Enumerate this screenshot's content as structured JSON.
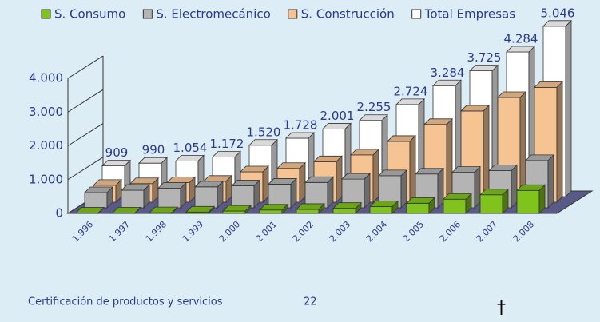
{
  "chart_data": {
    "type": "bar3d",
    "categories": [
      "1.996",
      "1.997",
      "1.998",
      "1.999",
      "2.000",
      "2.001",
      "2.002",
      "2.003",
      "2.004",
      "2.005",
      "2.006",
      "2.007",
      "2.008"
    ],
    "series": [
      {
        "name": "S. Consumo",
        "color": "#7fc31c",
        "values": [
          10,
          15,
          20,
          40,
          70,
          100,
          120,
          150,
          200,
          300,
          420,
          550,
          680
        ]
      },
      {
        "name": "S. Electromecánico",
        "color": "#b4b4b4",
        "values": [
          450,
          520,
          580,
          620,
          650,
          700,
          750,
          850,
          950,
          1000,
          1050,
          1100,
          1400
        ]
      },
      {
        "name": "S. Construcción",
        "color": "#f6c392",
        "values": [
          500,
          550,
          580,
          620,
          900,
          1000,
          1200,
          1400,
          1800,
          2300,
          2700,
          3100,
          3400
        ]
      },
      {
        "name": "Total Empresas",
        "color": "#ffffff",
        "values": [
          909,
          990,
          1054,
          1172,
          1520,
          1728,
          2001,
          2255,
          2724,
          3284,
          3725,
          4284,
          5046
        ],
        "value_labels": [
          "909",
          "990",
          "1.054",
          "1.172",
          "1.520",
          "1.728",
          "2.001",
          "2.255",
          "2.724",
          "3.284",
          "3.725",
          "4.284",
          "5.046"
        ]
      }
    ],
    "ylim": [
      0,
      4000
    ],
    "yticks": [
      0,
      {
        "value": 1000,
        "label": "1.000"
      },
      {
        "value": 2000,
        "label": "2.000"
      },
      {
        "value": 3000,
        "label": "3.000"
      },
      {
        "value": 4000,
        "label": "4.000"
      }
    ],
    "legend": "top"
  },
  "footer": {
    "caption": "Certificación de productos y servicios",
    "page": "22",
    "mark": "†"
  }
}
